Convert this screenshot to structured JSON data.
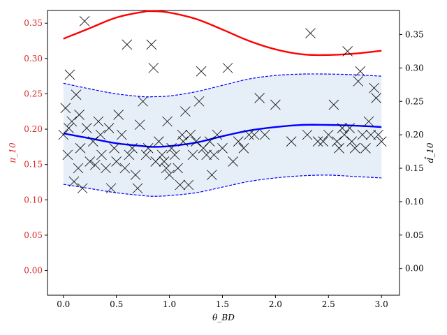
{
  "chart_data": {
    "type": "scatter",
    "title": "",
    "xlabel": "θ_BD",
    "ylabel_left": "π_10",
    "ylabel_right": "d̂_10",
    "xlim": [
      -0.15,
      3.17
    ],
    "ylim_left": [
      -0.035,
      0.368
    ],
    "ylim_right": [
      -0.04,
      0.386
    ],
    "x_ticks": [
      0.0,
      0.5,
      1.0,
      1.5,
      2.0,
      2.5,
      3.0
    ],
    "x_tick_labels": [
      "0.0",
      "0.5",
      "1.0",
      "1.5",
      "2.0",
      "2.5",
      "3.0"
    ],
    "y_left_ticks": [
      0.0,
      0.05,
      0.1,
      0.15,
      0.2,
      0.25,
      0.3,
      0.35
    ],
    "y_left_tick_labels": [
      "0.00",
      "0.05",
      "0.10",
      "0.15",
      "0.20",
      "0.25",
      "0.30",
      "0.35"
    ],
    "y_right_ticks": [
      0.0,
      0.05,
      0.1,
      0.15,
      0.2,
      0.25,
      0.3,
      0.35
    ],
    "y_right_tick_labels": [
      "0.00",
      "0.05",
      "0.10",
      "0.15",
      "0.20",
      "0.25",
      "0.30",
      "0.35"
    ],
    "grid": false,
    "colors": {
      "left_axis": "#d62728",
      "red_curve": "#ff0000",
      "blue_curve": "#0000ff",
      "band_fill": "#e6eef7",
      "markers": "#000000"
    },
    "series": [
      {
        "style": "line",
        "axis": "left",
        "color": "#ff0000",
        "x": [
          0.0,
          0.25,
          0.5,
          0.75,
          0.85,
          1.0,
          1.25,
          1.5,
          1.75,
          2.0,
          2.25,
          2.5,
          2.75,
          3.0
        ],
        "y": [
          0.328,
          0.343,
          0.358,
          0.366,
          0.367,
          0.365,
          0.356,
          0.341,
          0.325,
          0.313,
          0.306,
          0.305,
          0.307,
          0.311
        ]
      },
      {
        "style": "line",
        "axis": "left",
        "color": "#0000ff",
        "x": [
          0.0,
          0.25,
          0.5,
          0.75,
          0.85,
          1.0,
          1.25,
          1.5,
          1.75,
          2.0,
          2.25,
          2.5,
          2.75,
          3.0
        ],
        "y": [
          0.194,
          0.187,
          0.18,
          0.176,
          0.175,
          0.176,
          0.181,
          0.19,
          0.198,
          0.203,
          0.206,
          0.206,
          0.205,
          0.203
        ]
      },
      {
        "style": "band",
        "axis": "left",
        "color": "#0000ff",
        "x": [
          0.0,
          0.25,
          0.5,
          0.75,
          0.85,
          1.0,
          1.25,
          1.5,
          1.75,
          2.0,
          2.25,
          2.5,
          2.75,
          3.0
        ],
        "upper": [
          0.265,
          0.257,
          0.25,
          0.246,
          0.246,
          0.247,
          0.253,
          0.262,
          0.271,
          0.276,
          0.278,
          0.278,
          0.277,
          0.275
        ],
        "lower": [
          0.122,
          0.116,
          0.11,
          0.106,
          0.105,
          0.106,
          0.11,
          0.118,
          0.126,
          0.131,
          0.134,
          0.135,
          0.133,
          0.131
        ]
      },
      {
        "style": "scatter",
        "axis": "right",
        "marker": "x",
        "color": "#000000",
        "points": [
          [
            0.0,
            0.2
          ],
          [
            0.02,
            0.24
          ],
          [
            0.04,
            0.17
          ],
          [
            0.06,
            0.29
          ],
          [
            0.08,
            0.22
          ],
          [
            0.1,
            0.13
          ],
          [
            0.12,
            0.26
          ],
          [
            0.14,
            0.15
          ],
          [
            0.16,
            0.18
          ],
          [
            0.18,
            0.12
          ],
          [
            0.2,
            0.37
          ],
          [
            0.22,
            0.21
          ],
          [
            0.25,
            0.16
          ],
          [
            0.28,
            0.19
          ],
          [
            0.3,
            0.155
          ],
          [
            0.33,
            0.22
          ],
          [
            0.36,
            0.17
          ],
          [
            0.4,
            0.15
          ],
          [
            0.43,
            0.21
          ],
          [
            0.45,
            0.12
          ],
          [
            0.48,
            0.18
          ],
          [
            0.5,
            0.16
          ],
          [
            0.55,
            0.2
          ],
          [
            0.58,
            0.15
          ],
          [
            0.6,
            0.335
          ],
          [
            0.62,
            0.17
          ],
          [
            0.65,
            0.18
          ],
          [
            0.68,
            0.14
          ],
          [
            0.7,
            0.12
          ],
          [
            0.72,
            0.215
          ],
          [
            0.75,
            0.25
          ],
          [
            0.78,
            0.17
          ],
          [
            0.8,
            0.18
          ],
          [
            0.83,
            0.335
          ],
          [
            0.85,
            0.3
          ],
          [
            0.87,
            0.16
          ],
          [
            0.9,
            0.19
          ],
          [
            0.93,
            0.17
          ],
          [
            0.95,
            0.16
          ],
          [
            0.98,
            0.22
          ],
          [
            1.0,
            0.14
          ],
          [
            1.02,
            0.18
          ],
          [
            1.05,
            0.17
          ],
          [
            1.08,
            0.15
          ],
          [
            1.1,
            0.125
          ],
          [
            1.13,
            0.19
          ],
          [
            1.15,
            0.235
          ],
          [
            1.18,
            0.125
          ],
          [
            1.2,
            0.2
          ],
          [
            1.22,
            0.17
          ],
          [
            1.25,
            0.19
          ],
          [
            1.28,
            0.25
          ],
          [
            1.3,
            0.295
          ],
          [
            1.32,
            0.18
          ],
          [
            1.35,
            0.17
          ],
          [
            1.38,
            0.19
          ],
          [
            1.4,
            0.14
          ],
          [
            1.45,
            0.2
          ],
          [
            1.5,
            0.18
          ],
          [
            1.55,
            0.3
          ],
          [
            1.6,
            0.16
          ],
          [
            1.7,
            0.18
          ],
          [
            1.75,
            0.2
          ],
          [
            1.8,
            0.2
          ],
          [
            1.85,
            0.255
          ],
          [
            2.0,
            0.245
          ],
          [
            2.15,
            0.19
          ],
          [
            2.3,
            0.2
          ],
          [
            2.33,
            0.352
          ],
          [
            2.4,
            0.19
          ],
          [
            2.45,
            0.19
          ],
          [
            2.5,
            0.2
          ],
          [
            2.55,
            0.245
          ],
          [
            2.6,
            0.18
          ],
          [
            2.63,
            0.21
          ],
          [
            2.65,
            0.2
          ],
          [
            2.68,
            0.325
          ],
          [
            2.7,
            0.21
          ],
          [
            2.75,
            0.18
          ],
          [
            2.78,
            0.28
          ],
          [
            2.8,
            0.295
          ],
          [
            2.82,
            0.2
          ],
          [
            2.85,
            0.18
          ],
          [
            2.88,
            0.22
          ],
          [
            2.9,
            0.2
          ],
          [
            2.93,
            0.27
          ],
          [
            2.95,
            0.255
          ],
          [
            2.97,
            0.2
          ],
          [
            3.0,
            0.19
          ],
          [
            1.9,
            0.2
          ],
          [
            0.05,
            0.21
          ],
          [
            0.35,
            0.2
          ],
          [
            0.52,
            0.23
          ],
          [
            0.97,
            0.15
          ],
          [
            1.12,
            0.2
          ],
          [
            1.42,
            0.17
          ],
          [
            2.58,
            0.19
          ],
          [
            2.72,
            0.19
          ],
          [
            0.15,
            0.23
          ],
          [
            1.65,
            0.19
          ]
        ]
      }
    ]
  }
}
